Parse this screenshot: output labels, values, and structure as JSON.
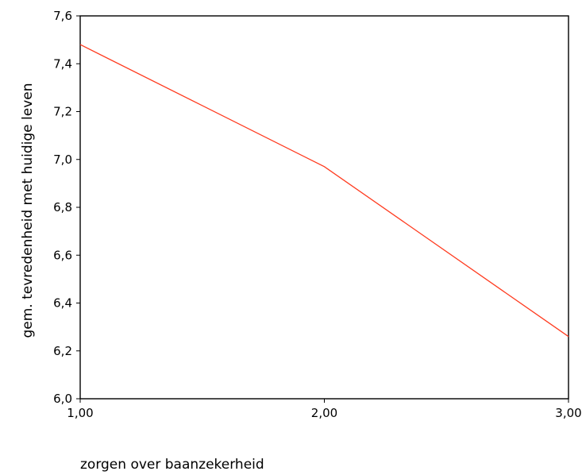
{
  "chart_data": {
    "type": "line",
    "title": "",
    "xlabel": "zorgen over baanzekerheid",
    "ylabel": "gem. tevredenheid met huidige leven",
    "x": [
      1.0,
      2.0,
      3.0
    ],
    "series": [
      {
        "values": [
          7.48,
          6.97,
          6.26
        ],
        "color": "#ff3b1f"
      }
    ],
    "xlim": [
      1.0,
      3.0
    ],
    "ylim": [
      6.0,
      7.6
    ],
    "xticks": [
      1.0,
      2.0,
      3.0
    ],
    "xtick_labels": [
      "1,00",
      "2,00",
      "3,00"
    ],
    "yticks": [
      6.0,
      6.2,
      6.4,
      6.6,
      6.8,
      7.0,
      7.2,
      7.4,
      7.6
    ],
    "ytick_labels": [
      "6,0",
      "6,2",
      "6,4",
      "6,6",
      "6,8",
      "7,0",
      "7,2",
      "7,4",
      "7,6"
    ],
    "grid": false,
    "legend": "none"
  }
}
